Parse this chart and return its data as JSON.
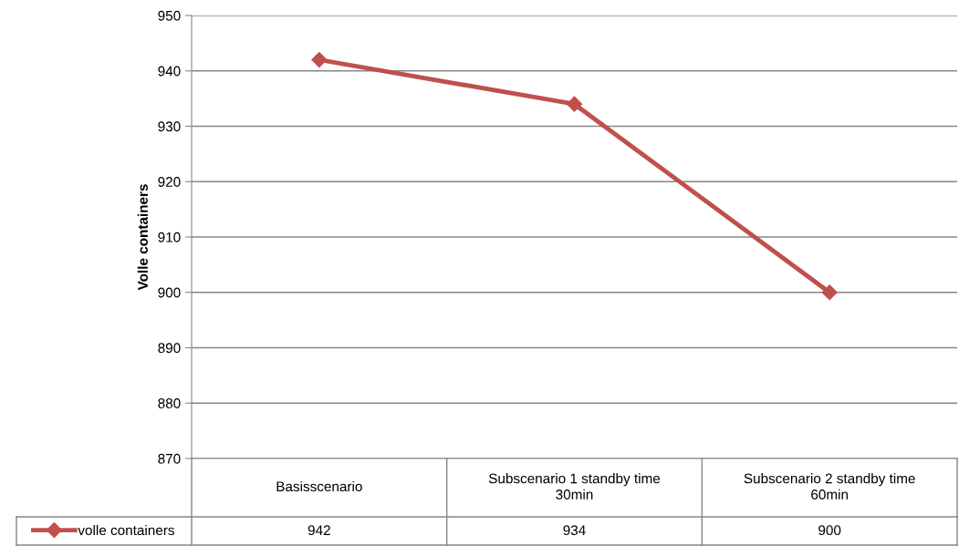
{
  "chart_data": {
    "type": "line",
    "ylabel": "Volle containers",
    "categories": [
      "Basisscenario",
      "Subscenario 1 standby time 30min",
      "Subscenario 2 standby time 60min"
    ],
    "series": [
      {
        "name": "volle containers",
        "color": "#c0504d",
        "values": [
          942,
          934,
          900
        ]
      }
    ],
    "ylim": [
      870,
      950
    ],
    "yticks": [
      870,
      880,
      890,
      900,
      910,
      920,
      930,
      940,
      950
    ],
    "grid": "y",
    "legend": "bottom left",
    "marker": "diamond",
    "line_style": "solid",
    "data_labels": true
  }
}
